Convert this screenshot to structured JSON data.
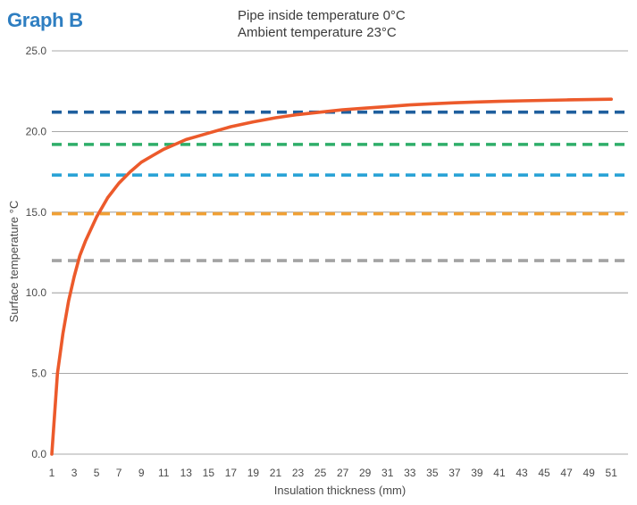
{
  "header": {
    "title": "Graph B",
    "subtitle_line1": "Pipe inside temperature 0°C",
    "subtitle_line2": "Ambient temperature 23°C"
  },
  "chart_data": {
    "type": "line",
    "title": "Graph B",
    "xlabel": "Insulation thickness (mm)",
    "ylabel": "Surface temperature °C",
    "xlim": [
      1,
      52
    ],
    "ylim": [
      0,
      25
    ],
    "xticks": [
      "1",
      "3",
      "5",
      "7",
      "9",
      "11",
      "13",
      "15",
      "17",
      "19",
      "21",
      "23",
      "25",
      "27",
      "29",
      "31",
      "33",
      "35",
      "37",
      "39",
      "41",
      "43",
      "45",
      "47",
      "49",
      "51"
    ],
    "yticks": [
      "0.0",
      "5.0",
      "10.0",
      "15.0",
      "20.0",
      "25.0"
    ],
    "grid": "horizontal",
    "series": [
      {
        "color": "#ec5a2b",
        "style": "solid",
        "x": [
          1,
          1.5,
          2,
          2.5,
          3,
          3.5,
          4,
          5,
          6,
          7,
          8,
          9,
          10,
          11,
          12,
          13,
          14,
          15,
          17,
          19,
          21,
          23,
          25,
          27,
          29,
          31,
          33,
          35,
          37,
          39,
          41,
          43,
          45,
          47,
          49,
          51
        ],
        "y": [
          0.0,
          5.0,
          7.5,
          9.5,
          11.0,
          12.3,
          13.2,
          14.7,
          15.9,
          16.8,
          17.5,
          18.1,
          18.5,
          18.9,
          19.2,
          19.5,
          19.7,
          19.9,
          20.3,
          20.6,
          20.85,
          21.05,
          21.2,
          21.35,
          21.45,
          21.55,
          21.65,
          21.72,
          21.78,
          21.83,
          21.87,
          21.9,
          21.93,
          21.96,
          21.98,
          22.0
        ]
      },
      {
        "color": "#1f5f9e",
        "style": "dashed",
        "x": [
          1,
          52
        ],
        "y": [
          21.2,
          21.2
        ]
      },
      {
        "color": "#2fae69",
        "style": "dashed",
        "x": [
          1,
          52
        ],
        "y": [
          19.2,
          19.2
        ]
      },
      {
        "color": "#2aa3d6",
        "style": "dashed",
        "x": [
          1,
          52
        ],
        "y": [
          17.3,
          17.3
        ]
      },
      {
        "color": "#f0a035",
        "style": "dashed",
        "x": [
          1,
          52
        ],
        "y": [
          14.9,
          14.9
        ]
      },
      {
        "color": "#a3a3a3",
        "style": "dashed",
        "x": [
          1,
          52
        ],
        "y": [
          12.0,
          12.0
        ]
      }
    ]
  }
}
